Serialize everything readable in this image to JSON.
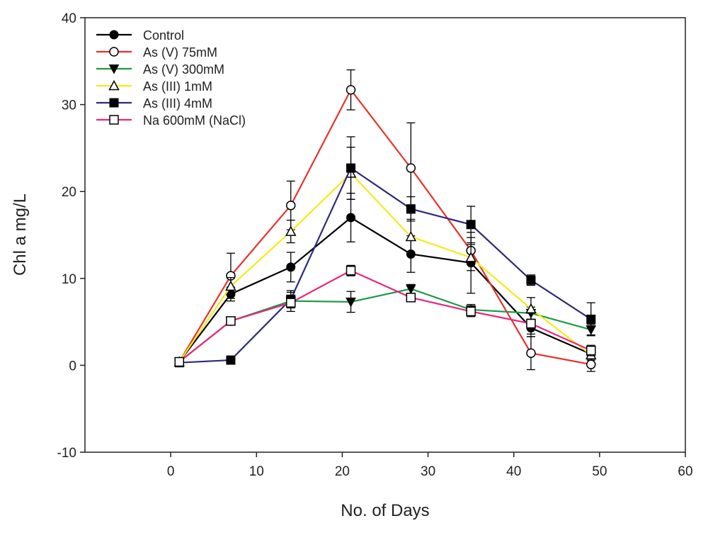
{
  "chart_data": {
    "type": "line",
    "title": "",
    "xlabel": "No. of Days",
    "ylabel": "Chl a mg/L",
    "xlim": [
      -10,
      60
    ],
    "ylim": [
      -10,
      40
    ],
    "xticks": [
      0,
      10,
      20,
      30,
      40,
      50,
      60
    ],
    "yticks": [
      -10,
      0,
      10,
      20,
      30,
      40
    ],
    "xtick_labels": [
      "0",
      "10",
      "20",
      "30",
      "40",
      "50",
      "60"
    ],
    "ytick_labels": [
      "-10",
      "0",
      "10",
      "20",
      "30",
      "40"
    ],
    "grid": false,
    "legend_position": "top-left",
    "x": [
      1,
      7,
      14,
      21,
      28,
      35,
      42,
      49
    ],
    "series": [
      {
        "name": "Control",
        "color": "#000000",
        "marker": "filled-circle",
        "values": [
          0.4,
          8.2,
          11.3,
          17.0,
          12.8,
          11.8,
          4.3,
          1.3
        ],
        "errors": [
          0.3,
          0.8,
          1.7,
          2.8,
          2.1,
          3.5,
          1.0,
          0.7
        ]
      },
      {
        "name": "As (V) 75mM",
        "color": "#e8312b",
        "marker": "open-circle",
        "values": [
          0.4,
          10.3,
          18.4,
          31.7,
          22.7,
          13.2,
          1.4,
          0.1
        ],
        "errors": [
          0.3,
          2.6,
          2.8,
          2.3,
          5.2,
          1.5,
          1.9,
          0.8
        ]
      },
      {
        "name": "As (V) 300mM",
        "color": "#1d9a45",
        "marker": "filled-triangle-down",
        "values": [
          0.4,
          5.1,
          7.4,
          7.3,
          8.8,
          6.4,
          6.0,
          4.1
        ],
        "errors": [
          0.3,
          0.4,
          1.2,
          1.2,
          0.5,
          0.6,
          0.7,
          0.6
        ]
      },
      {
        "name": "As (III) 1mM",
        "color": "#f5ea1a",
        "marker": "open-triangle-up",
        "values": [
          0.4,
          9.1,
          15.4,
          22.1,
          14.8,
          12.4,
          6.5,
          1.2
        ],
        "errors": [
          0.3,
          1.0,
          1.3,
          3.0,
          2.0,
          1.5,
          1.3,
          0.6
        ]
      },
      {
        "name": "As (III) 4mM",
        "color": "#2e2a7a",
        "marker": "filled-square",
        "values": [
          0.3,
          0.6,
          7.6,
          22.7,
          18.0,
          16.2,
          9.8,
          5.3
        ],
        "errors": [
          0.2,
          0.2,
          0.8,
          3.6,
          1.4,
          2.1,
          0.6,
          1.9
        ]
      },
      {
        "name": "Na 600mM (NaCl)",
        "color": "#e8277e",
        "marker": "open-square",
        "values": [
          0.4,
          5.1,
          7.2,
          10.9,
          7.8,
          6.2,
          4.8,
          1.7
        ],
        "errors": [
          0.3,
          0.4,
          0.6,
          0.6,
          0.4,
          0.6,
          1.2,
          0.6
        ]
      }
    ]
  }
}
